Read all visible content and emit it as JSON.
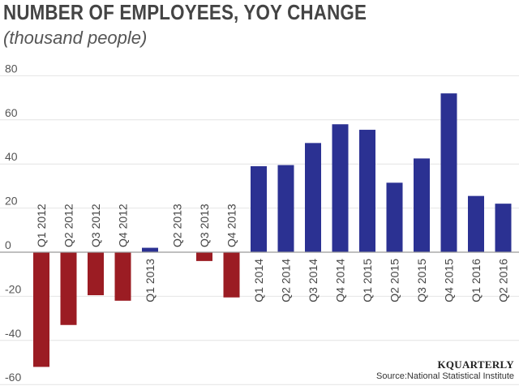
{
  "header": {
    "title": "NUMBER OF EMPLOYEES, YOY CHANGE",
    "subtitle": "(thousand people)"
  },
  "footer": {
    "brand": "KQUARTERLY",
    "source": "Source:National Statistical Institute"
  },
  "colors": {
    "negative": "#9b1c23",
    "positive": "#2b3192",
    "grid": "#e4e4e4",
    "zero_line": "#9a9a9a"
  },
  "chart_data": {
    "type": "bar",
    "title": "NUMBER OF EMPLOYEES, YOY CHANGE",
    "subtitle": "(thousand people)",
    "xlabel": "",
    "ylabel": "",
    "ylim": [
      -60,
      80
    ],
    "yticks": [
      80,
      60,
      40,
      20,
      0,
      -20,
      -40,
      -60
    ],
    "grid": true,
    "categories": [
      "Q1 2012",
      "Q2 2012",
      "Q3 2012",
      "Q4 2012",
      "Q1 2013",
      "Q2 2013",
      "Q3 2013",
      "Q4 2013",
      "Q1 2014",
      "Q2 2014",
      "Q3 2014",
      "Q4 2014",
      "Q1 2015",
      "Q2 2015",
      "Q3 2015",
      "Q4 2015",
      "Q1 2016",
      "Q2 2016"
    ],
    "values": [
      -52,
      -33,
      -19.5,
      -22,
      2,
      0,
      -4,
      -20.5,
      39,
      39.5,
      49.5,
      58,
      55.5,
      31.5,
      42.5,
      72,
      25.5,
      22
    ]
  }
}
